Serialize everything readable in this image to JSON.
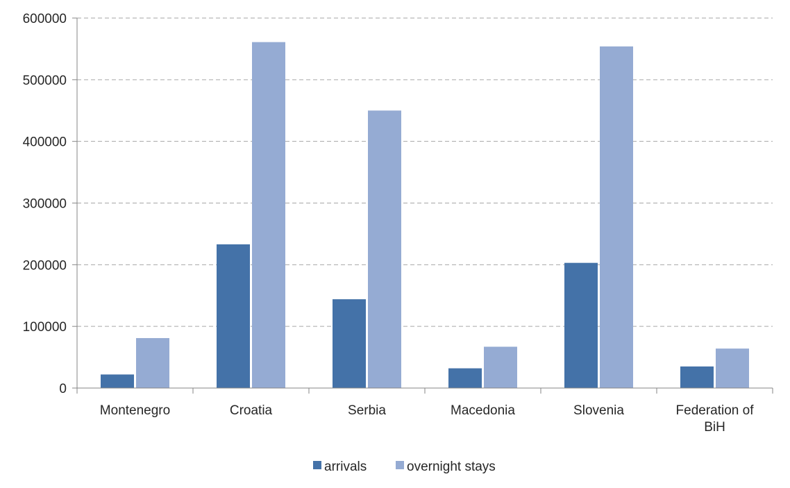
{
  "chart_data": {
    "type": "bar",
    "title": "",
    "xlabel": "",
    "ylabel": "",
    "categories": [
      [
        "Montenegro"
      ],
      [
        "Croatia"
      ],
      [
        "Serbia"
      ],
      [
        "Macedonia"
      ],
      [
        "Slovenia"
      ],
      [
        "Federation of",
        "BiH"
      ]
    ],
    "series": [
      {
        "name": "arrivals",
        "color": "#4472a8",
        "values": [
          22000,
          233000,
          144000,
          32000,
          203000,
          35000
        ]
      },
      {
        "name": "overnight stays",
        "color": "#95abd3",
        "values": [
          81000,
          561000,
          450000,
          67000,
          554000,
          64000
        ]
      }
    ],
    "ylim": [
      0,
      600000
    ],
    "yticks": [
      "0",
      "100000",
      "200000",
      "300000",
      "400000",
      "500000",
      "600000"
    ],
    "grid": true,
    "legend_position": "bottom-center"
  }
}
